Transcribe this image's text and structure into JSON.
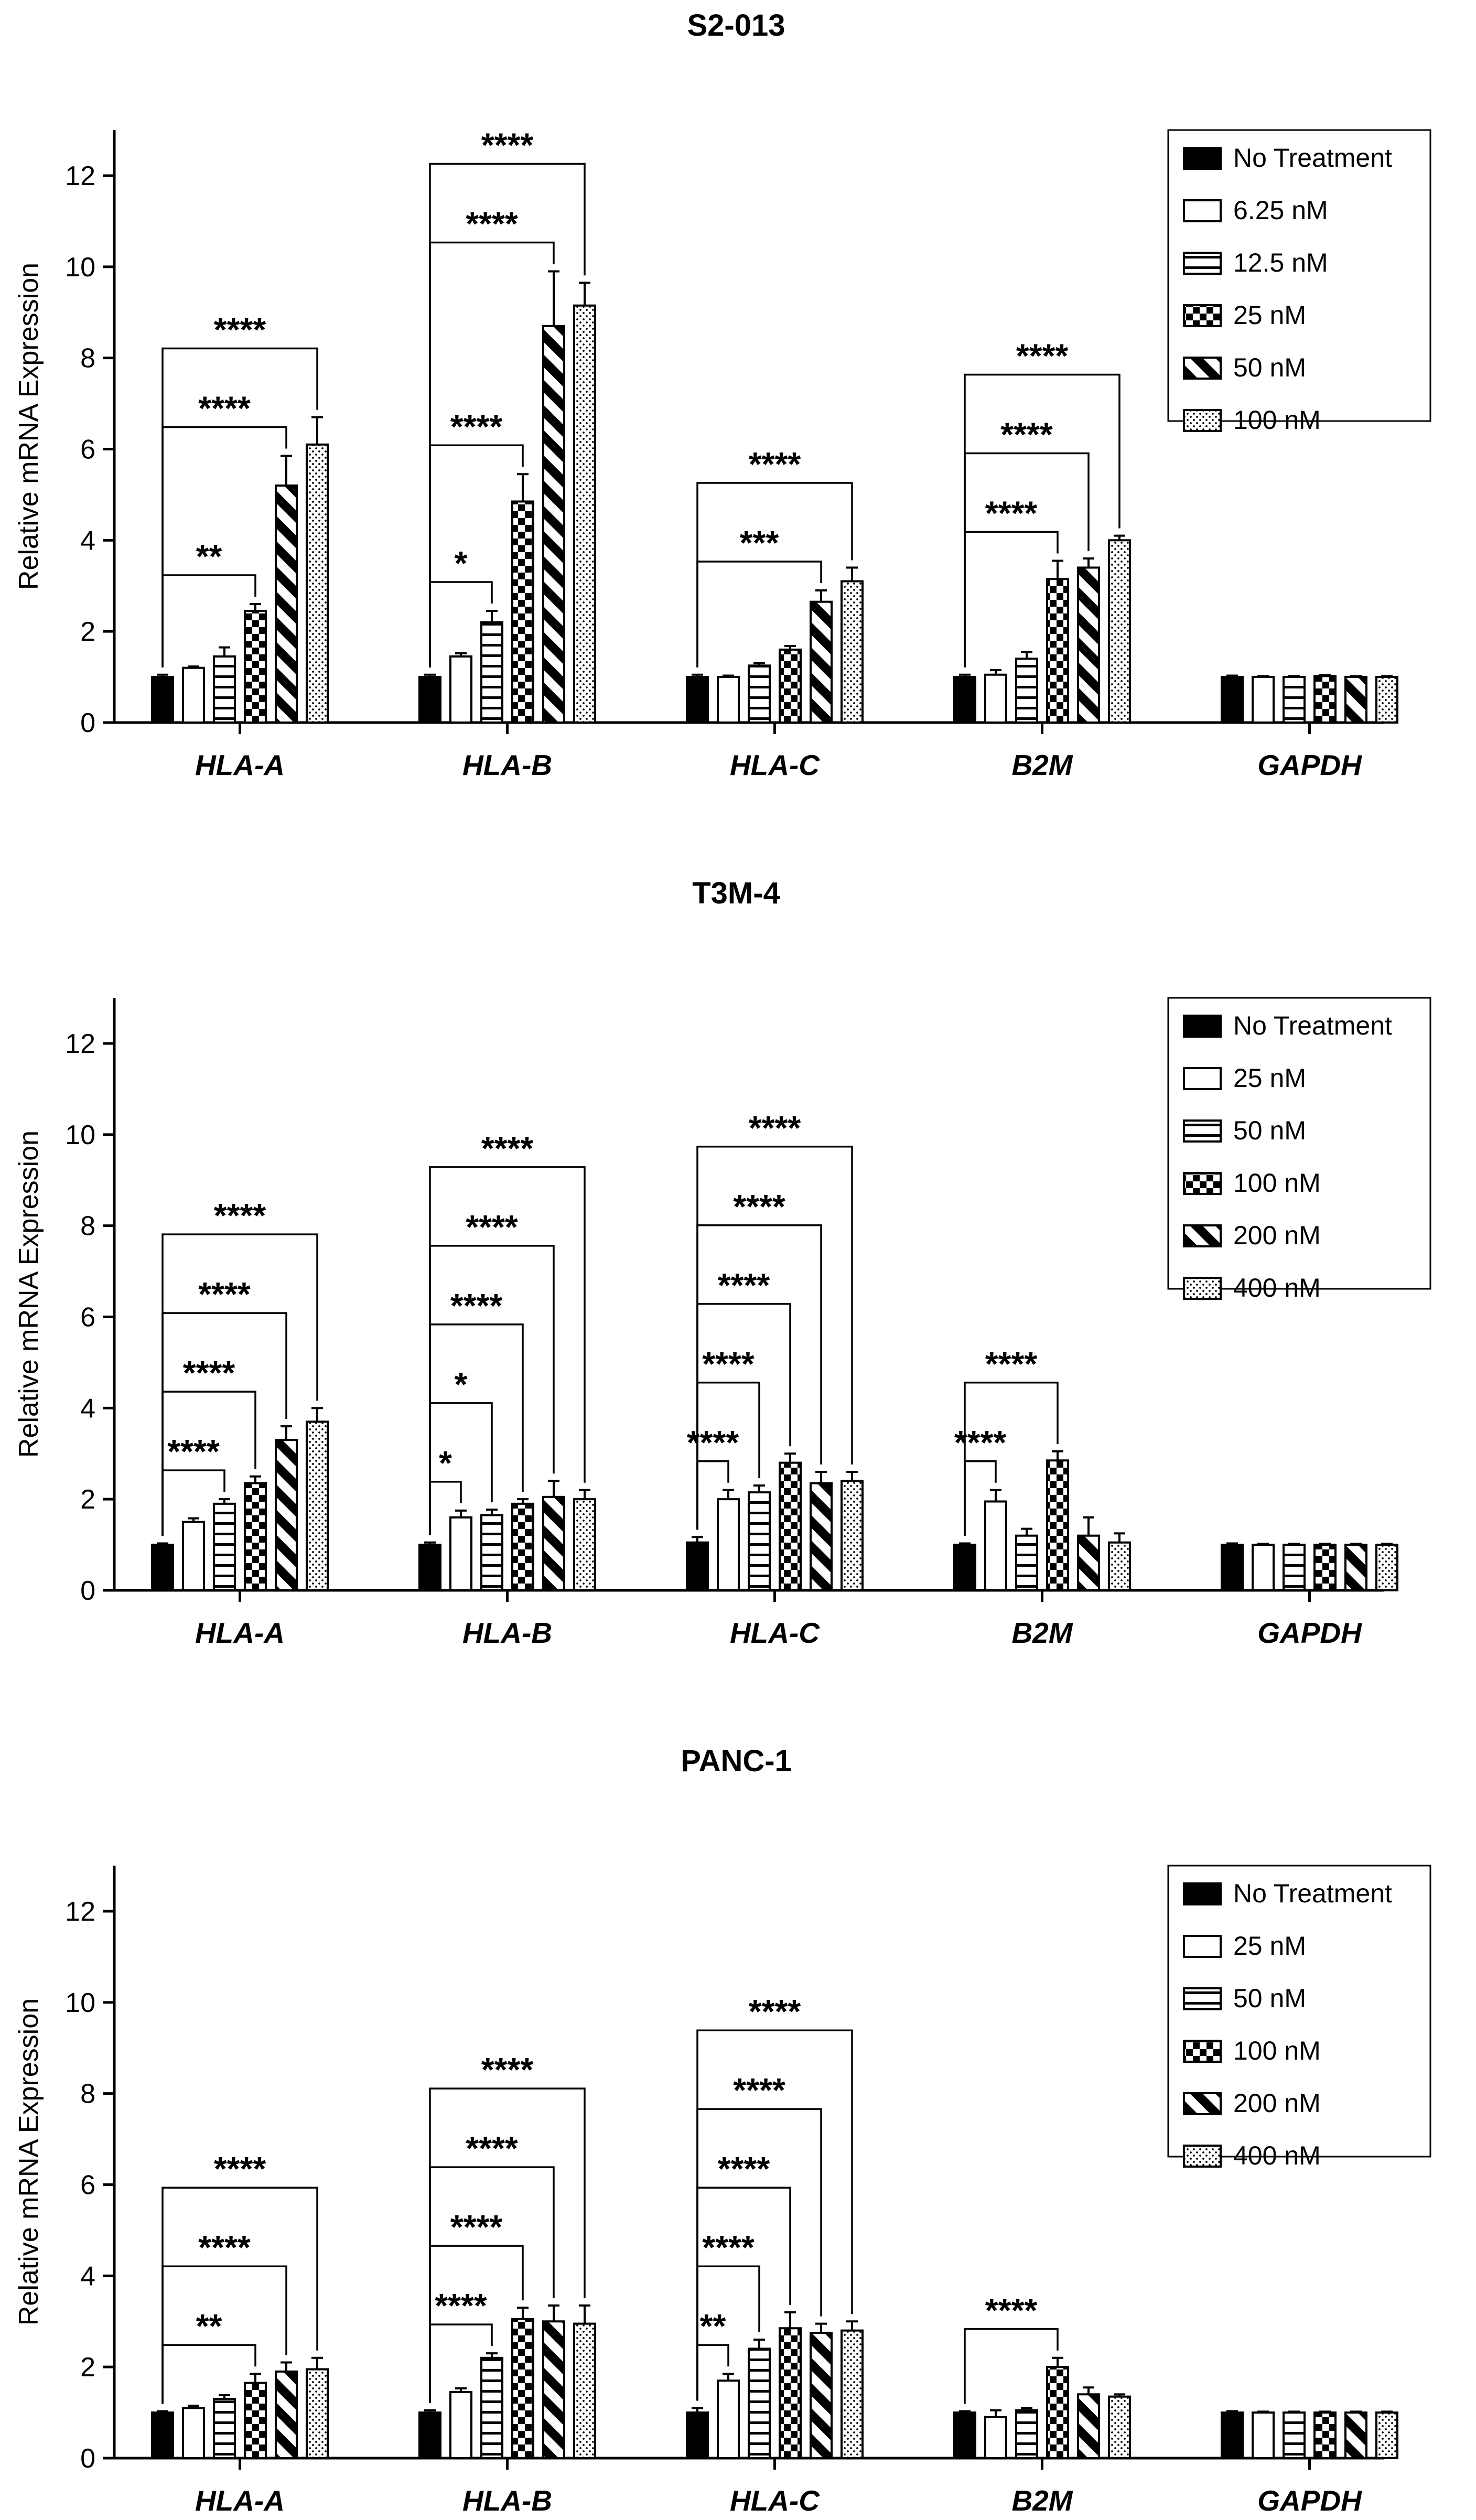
{
  "chart_data": [
    {
      "type": "bar",
      "title": "S2-013",
      "ylabel": "Relative mRNA Expression",
      "ylim": [
        0,
        13
      ],
      "yticks": [
        "0",
        "2",
        "4",
        "6",
        "8",
        "10",
        "12"
      ],
      "categories": [
        "HLA-A",
        "HLA-B",
        "HLA-C",
        "B2M",
        "GAPDH"
      ],
      "legend_position": "top-right",
      "series": [
        {
          "name": "No Treatment",
          "pattern": "solid",
          "values": [
            1.0,
            1.0,
            1.0,
            1.0,
            1.0
          ],
          "errors": [
            0.05,
            0.05,
            0.05,
            0.05,
            0.03
          ]
        },
        {
          "name": "6.25 nM",
          "pattern": "empty",
          "values": [
            1.2,
            1.45,
            1.0,
            1.05,
            1.0
          ],
          "errors": [
            0.03,
            0.07,
            0.03,
            0.1,
            0.02
          ]
        },
        {
          "name": "12.5 nM",
          "pattern": "hlines",
          "values": [
            1.45,
            2.2,
            1.25,
            1.4,
            1.0
          ],
          "errors": [
            0.2,
            0.25,
            0.05,
            0.15,
            0.02
          ]
        },
        {
          "name": "25 nM",
          "pattern": "checker",
          "values": [
            2.45,
            4.85,
            1.6,
            3.15,
            1.02
          ],
          "errors": [
            0.15,
            0.6,
            0.08,
            0.4,
            0.02
          ]
        },
        {
          "name": "50 nM",
          "pattern": "diag",
          "values": [
            5.2,
            8.7,
            2.65,
            3.4,
            1.0
          ],
          "errors": [
            0.65,
            1.2,
            0.25,
            0.2,
            0.02
          ]
        },
        {
          "name": "100 nM",
          "pattern": "dots",
          "values": [
            6.1,
            9.15,
            3.1,
            4.0,
            1.0
          ],
          "errors": [
            0.6,
            0.5,
            0.3,
            0.1,
            0.02
          ]
        }
      ],
      "significance": [
        {
          "category": 0,
          "to_series": 3,
          "label": "**"
        },
        {
          "category": 0,
          "to_series": 4,
          "label": "****"
        },
        {
          "category": 0,
          "to_series": 5,
          "label": "****"
        },
        {
          "category": 1,
          "to_series": 2,
          "label": "*"
        },
        {
          "category": 1,
          "to_series": 3,
          "label": "****"
        },
        {
          "category": 1,
          "to_series": 4,
          "label": "****"
        },
        {
          "category": 1,
          "to_series": 5,
          "label": "****"
        },
        {
          "category": 2,
          "to_series": 4,
          "label": "***"
        },
        {
          "category": 2,
          "to_series": 5,
          "label": "****"
        },
        {
          "category": 3,
          "to_series": 3,
          "label": "****"
        },
        {
          "category": 3,
          "to_series": 4,
          "label": "****"
        },
        {
          "category": 3,
          "to_series": 5,
          "label": "****"
        }
      ]
    },
    {
      "type": "bar",
      "title": "T3M-4",
      "ylabel": "Relative mRNA Expression",
      "ylim": [
        0,
        13
      ],
      "yticks": [
        "0",
        "2",
        "4",
        "6",
        "8",
        "10",
        "12"
      ],
      "categories": [
        "HLA-A",
        "HLA-B",
        "HLA-C",
        "B2M",
        "GAPDH"
      ],
      "legend_position": "top-right",
      "series": [
        {
          "name": "No Treatment",
          "pattern": "solid",
          "values": [
            1.0,
            1.0,
            1.05,
            1.0,
            1.0
          ],
          "errors": [
            0.03,
            0.05,
            0.12,
            0.03,
            0.03
          ]
        },
        {
          "name": "25 nM",
          "pattern": "empty",
          "values": [
            1.5,
            1.6,
            2.0,
            1.95,
            1.0
          ],
          "errors": [
            0.08,
            0.15,
            0.2,
            0.25,
            0.02
          ]
        },
        {
          "name": "50 nM",
          "pattern": "hlines",
          "values": [
            1.9,
            1.65,
            2.15,
            1.2,
            1.0
          ],
          "errors": [
            0.1,
            0.12,
            0.15,
            0.15,
            0.02
          ]
        },
        {
          "name": "100 nM",
          "pattern": "checker",
          "values": [
            2.35,
            1.9,
            2.8,
            2.85,
            1.0
          ],
          "errors": [
            0.15,
            0.1,
            0.2,
            0.2,
            0.02
          ]
        },
        {
          "name": "200 nM",
          "pattern": "diag",
          "values": [
            3.3,
            2.05,
            2.35,
            1.2,
            1.0
          ],
          "errors": [
            0.3,
            0.35,
            0.25,
            0.4,
            0.02
          ]
        },
        {
          "name": "400 nM",
          "pattern": "dots",
          "values": [
            3.7,
            2.0,
            2.4,
            1.05,
            1.0
          ],
          "errors": [
            0.3,
            0.2,
            0.2,
            0.2,
            0.02
          ]
        }
      ],
      "significance": [
        {
          "category": 0,
          "to_series": 2,
          "label": "****"
        },
        {
          "category": 0,
          "to_series": 3,
          "label": "****"
        },
        {
          "category": 0,
          "to_series": 4,
          "label": "****"
        },
        {
          "category": 0,
          "to_series": 5,
          "label": "****"
        },
        {
          "category": 1,
          "to_series": 1,
          "label": "*"
        },
        {
          "category": 1,
          "to_series": 2,
          "label": "*"
        },
        {
          "category": 1,
          "to_series": 3,
          "label": "****"
        },
        {
          "category": 1,
          "to_series": 4,
          "label": "****"
        },
        {
          "category": 1,
          "to_series": 5,
          "label": "****"
        },
        {
          "category": 2,
          "to_series": 1,
          "label": "****"
        },
        {
          "category": 2,
          "to_series": 2,
          "label": "****"
        },
        {
          "category": 2,
          "to_series": 3,
          "label": "****"
        },
        {
          "category": 2,
          "to_series": 4,
          "label": "****"
        },
        {
          "category": 2,
          "to_series": 5,
          "label": "****"
        },
        {
          "category": 3,
          "to_series": 1,
          "label": "****"
        },
        {
          "category": 3,
          "to_series": 3,
          "label": "****"
        }
      ]
    },
    {
      "type": "bar",
      "title": "PANC-1",
      "ylabel": "Relative mRNA Expression",
      "ylim": [
        0,
        13
      ],
      "yticks": [
        "0",
        "2",
        "4",
        "6",
        "8",
        "10",
        "12"
      ],
      "categories": [
        "HLA-A",
        "HLA-B",
        "HLA-C",
        "B2M",
        "GAPDH"
      ],
      "legend_position": "top-right",
      "series": [
        {
          "name": "No Treatment",
          "pattern": "solid",
          "values": [
            1.0,
            1.0,
            1.0,
            1.0,
            1.0
          ],
          "errors": [
            0.03,
            0.05,
            0.1,
            0.03,
            0.03
          ]
        },
        {
          "name": "25 nM",
          "pattern": "empty",
          "values": [
            1.1,
            1.45,
            1.7,
            0.9,
            1.0
          ],
          "errors": [
            0.05,
            0.08,
            0.15,
            0.15,
            0.02
          ]
        },
        {
          "name": "50 nM",
          "pattern": "hlines",
          "values": [
            1.3,
            2.2,
            2.4,
            1.05,
            1.0
          ],
          "errors": [
            0.08,
            0.1,
            0.2,
            0.05,
            0.02
          ]
        },
        {
          "name": "100 nM",
          "pattern": "checker",
          "values": [
            1.65,
            3.05,
            2.85,
            2.0,
            1.0
          ],
          "errors": [
            0.2,
            0.25,
            0.35,
            0.2,
            0.02
          ]
        },
        {
          "name": "200 nM",
          "pattern": "diag",
          "values": [
            1.9,
            3.0,
            2.75,
            1.4,
            1.0
          ],
          "errors": [
            0.2,
            0.35,
            0.2,
            0.15,
            0.02
          ]
        },
        {
          "name": "400 nM",
          "pattern": "dots",
          "values": [
            1.95,
            2.95,
            2.8,
            1.35,
            1.0
          ],
          "errors": [
            0.25,
            0.4,
            0.2,
            0.05,
            0.02
          ]
        }
      ],
      "significance": [
        {
          "category": 0,
          "to_series": 3,
          "label": "**"
        },
        {
          "category": 0,
          "to_series": 4,
          "label": "****"
        },
        {
          "category": 0,
          "to_series": 5,
          "label": "****"
        },
        {
          "category": 1,
          "to_series": 2,
          "label": "****"
        },
        {
          "category": 1,
          "to_series": 3,
          "label": "****"
        },
        {
          "category": 1,
          "to_series": 4,
          "label": "****"
        },
        {
          "category": 1,
          "to_series": 5,
          "label": "****"
        },
        {
          "category": 2,
          "to_series": 1,
          "label": "**"
        },
        {
          "category": 2,
          "to_series": 2,
          "label": "****"
        },
        {
          "category": 2,
          "to_series": 3,
          "label": "****"
        },
        {
          "category": 2,
          "to_series": 4,
          "label": "****"
        },
        {
          "category": 2,
          "to_series": 5,
          "label": "****"
        },
        {
          "category": 3,
          "to_series": 3,
          "label": "****"
        }
      ]
    }
  ]
}
